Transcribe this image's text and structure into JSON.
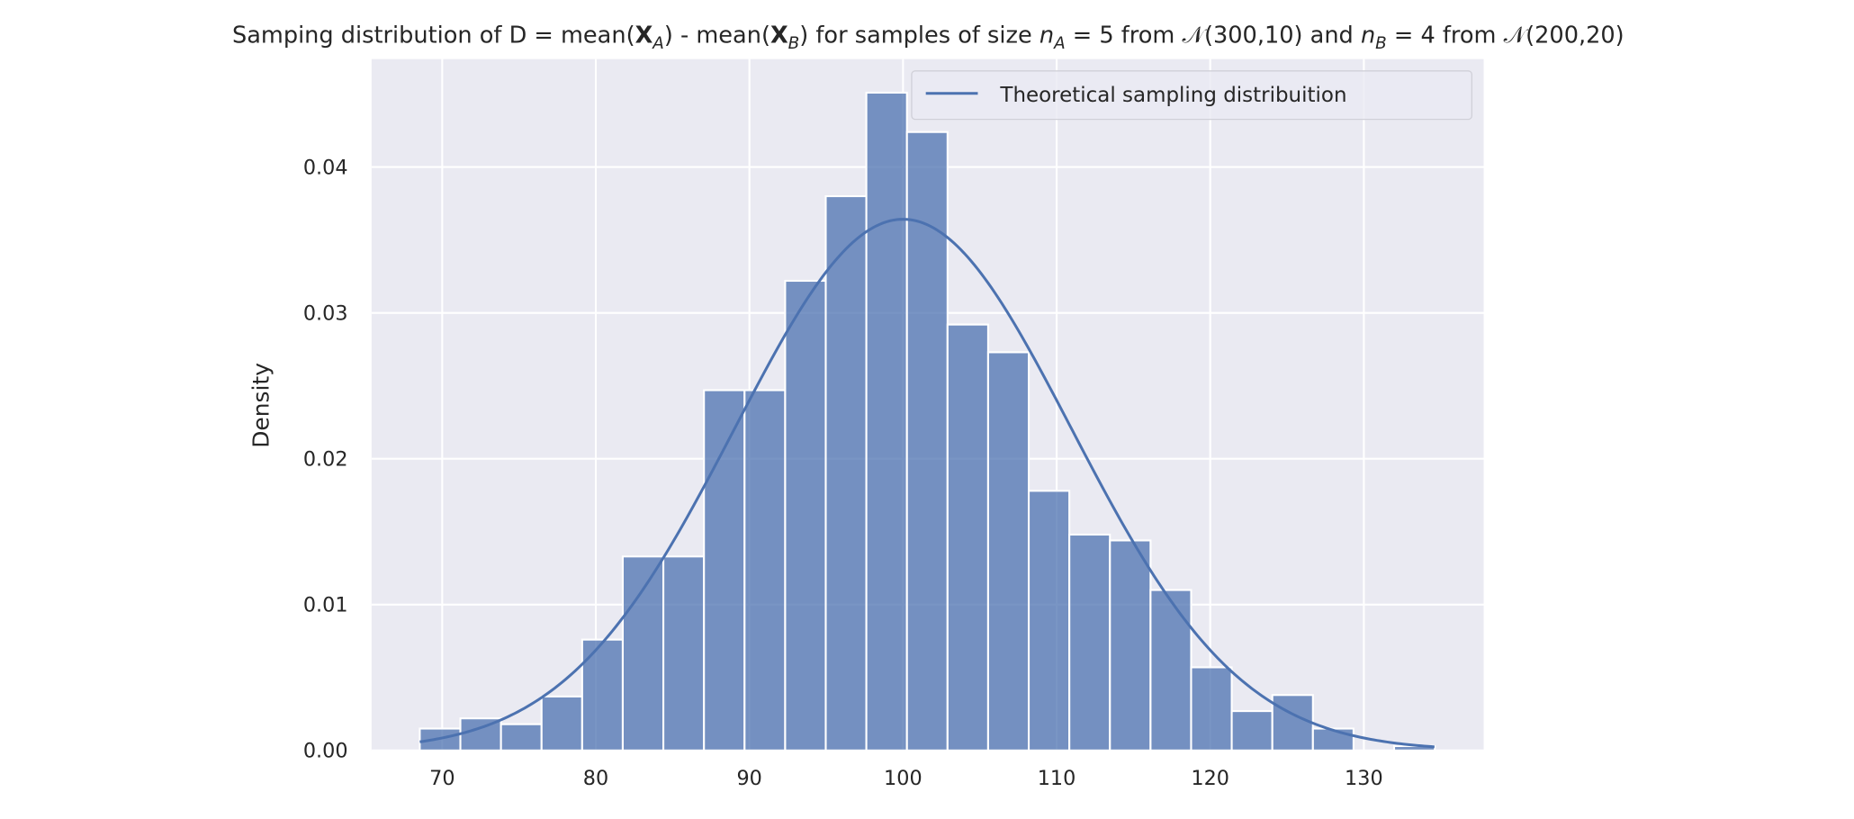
{
  "chart_data": {
    "type": "bar",
    "title_parts": [
      {
        "text": "Samping distribution of D = mean(",
        "style": "normal"
      },
      {
        "text": "X",
        "style": "bold"
      },
      {
        "text": "A",
        "style": "sub-italic"
      },
      {
        "text": ") - mean(",
        "style": "normal"
      },
      {
        "text": "X",
        "style": "bold"
      },
      {
        "text": "B",
        "style": "sub-italic"
      },
      {
        "text": ") for samples of size ",
        "style": "normal"
      },
      {
        "text": "n",
        "style": "italic"
      },
      {
        "text": "A",
        "style": "sub-italic"
      },
      {
        "text": " = 5 from 𝒩(300,10) and ",
        "style": "normal"
      },
      {
        "text": "n",
        "style": "italic"
      },
      {
        "text": "B",
        "style": "sub-italic"
      },
      {
        "text": " = 4 from 𝒩(200,20)",
        "style": "normal"
      }
    ],
    "xlabel": "",
    "ylabel": "Density",
    "xlim": [
      65.4,
      137.8
    ],
    "ylim": [
      0,
      0.0474
    ],
    "xticks": [
      70,
      80,
      90,
      100,
      110,
      120,
      130
    ],
    "xtick_labels": [
      "70",
      "80",
      "90",
      "100",
      "110",
      "120",
      "130"
    ],
    "yticks": [
      0,
      0.01,
      0.02,
      0.03,
      0.04
    ],
    "ytick_labels": [
      "0.00",
      "0.01",
      "0.02",
      "0.03",
      "0.04"
    ],
    "grid": true,
    "histogram": {
      "bin_start": 68.54,
      "bin_width": 2.643,
      "densities": [
        0.0015,
        0.0022,
        0.0018,
        0.0037,
        0.0076,
        0.0133,
        0.0133,
        0.0247,
        0.0247,
        0.0322,
        0.038,
        0.0451,
        0.0424,
        0.0292,
        0.0273,
        0.0178,
        0.0148,
        0.0144,
        0.011,
        0.0057,
        0.0027,
        0.0038,
        0.0015,
        0.0,
        0.0003
      ],
      "color": "#4c72b0"
    },
    "series": [
      {
        "name": "Theoretical sampling distribuition",
        "type": "line",
        "distribution": "normal",
        "mean": 100,
        "sd": 10.954,
        "x_range": [
          68.54,
          134.6
        ],
        "color": "#4c72b0"
      }
    ],
    "legend": {
      "entries": [
        "Theoretical sampling distribuition"
      ],
      "placement": "top-right"
    },
    "background": "#eaeaf2"
  }
}
